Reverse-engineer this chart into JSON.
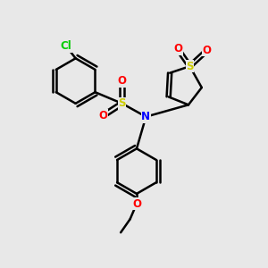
{
  "bg_color": "#e8e8e8",
  "bond_color": "#000000",
  "bond_width": 1.8,
  "atom_colors": {
    "Cl": "#00cc00",
    "S": "#cccc00",
    "N": "#0000ff",
    "O": "#ff0000",
    "C": "#000000"
  },
  "font_size": 8.5
}
